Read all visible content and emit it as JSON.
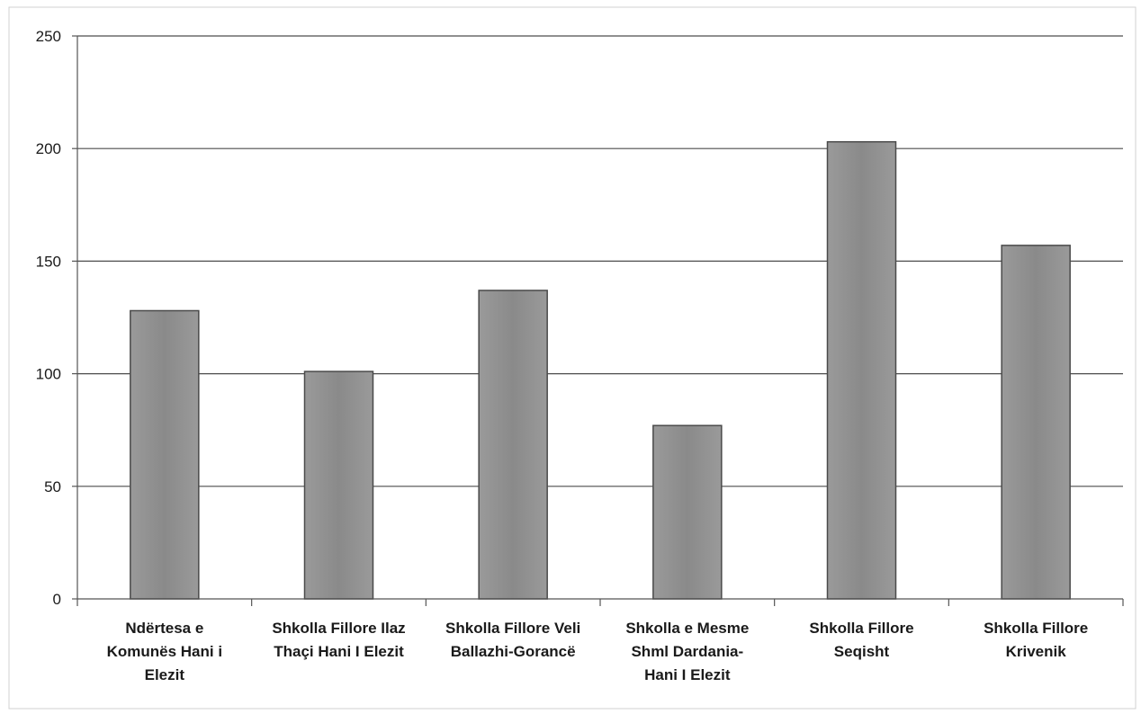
{
  "chart_data": {
    "type": "bar",
    "title": "",
    "xlabel": "",
    "ylabel": "",
    "ylim": [
      0,
      250
    ],
    "yticks": [
      0,
      50,
      100,
      150,
      200,
      250
    ],
    "grid": true,
    "legend": "none",
    "categories": [
      [
        "Ndërtesa e",
        "Komunës Hani i",
        "Elezit"
      ],
      [
        "Shkolla Fillore Ilaz",
        "Thaçi Hani I Elezit"
      ],
      [
        "Shkolla Fillore Veli",
        "Ballazhi-Gorancë"
      ],
      [
        "Shkolla e Mesme",
        "Shml Dardania-",
        "Hani I Elezit"
      ],
      [
        "Shkolla Fillore",
        "Seqisht"
      ],
      [
        "Shkolla Fillore",
        "Krivenik"
      ]
    ],
    "values": [
      128,
      101,
      137,
      77,
      203,
      157
    ],
    "colors": {
      "bar": "#8c8c8c",
      "bar_stroke": "#4a4a4a",
      "grid": "#4d4d4d",
      "axis": "#555555"
    }
  }
}
